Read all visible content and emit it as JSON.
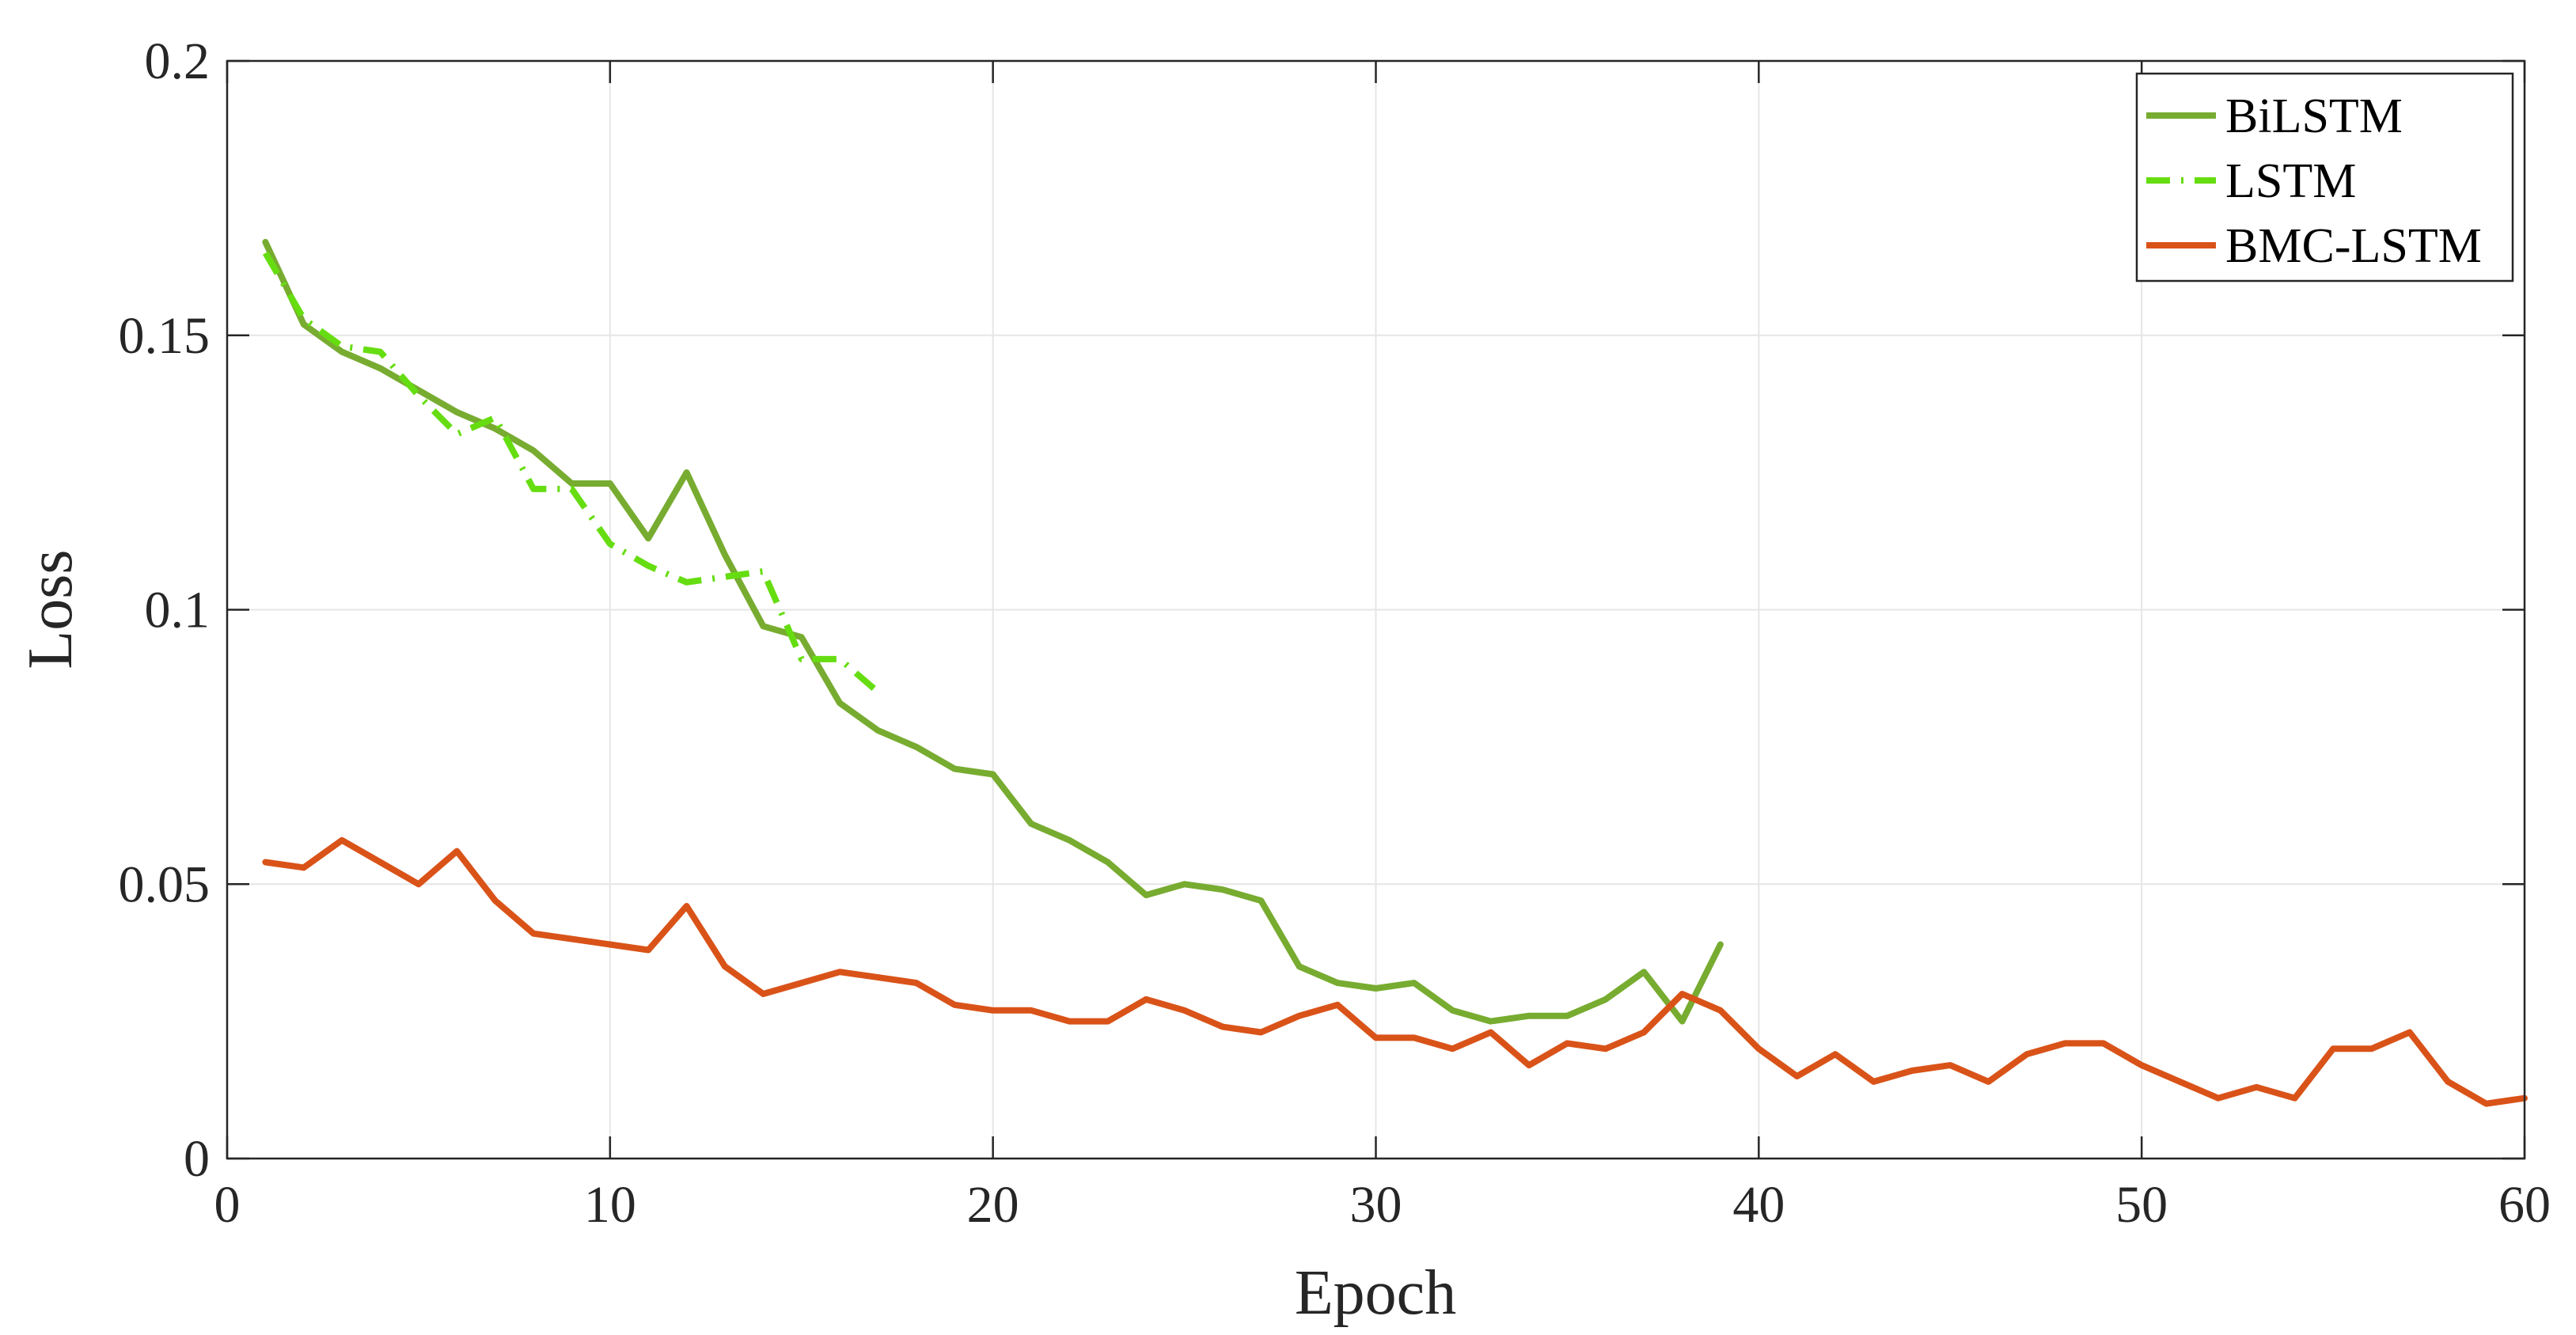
{
  "chart_data": {
    "type": "line",
    "title": "",
    "xlabel": "Epoch",
    "ylabel": "Loss",
    "xlim": [
      0,
      60
    ],
    "ylim": [
      0,
      0.2
    ],
    "xticks": [
      0,
      10,
      20,
      30,
      40,
      50,
      60
    ],
    "xtick_labels": [
      "0",
      "10",
      "20",
      "30",
      "40",
      "50",
      "60"
    ],
    "yticks": [
      0,
      0.05,
      0.1,
      0.15,
      0.2
    ],
    "ytick_labels": [
      "0",
      "0.05",
      "0.1",
      "0.15",
      "0.2"
    ],
    "grid": true,
    "legend_position": "top-right",
    "series": [
      {
        "name": "BiLSTM",
        "color": "#77AC30",
        "style": "solid",
        "x": [
          1,
          2,
          3,
          4,
          5,
          6,
          7,
          8,
          9,
          10,
          11,
          12,
          13,
          14,
          15,
          16,
          17,
          18,
          19,
          20,
          21,
          22,
          23,
          24,
          25,
          26,
          27,
          28,
          29,
          30,
          31,
          32,
          33,
          34,
          35,
          36,
          37,
          38,
          39
        ],
        "values": [
          0.167,
          0.152,
          0.147,
          0.144,
          0.14,
          0.136,
          0.133,
          0.129,
          0.123,
          0.123,
          0.113,
          0.125,
          0.11,
          0.097,
          0.095,
          0.083,
          0.078,
          0.075,
          0.071,
          0.07,
          0.061,
          0.058,
          0.054,
          0.048,
          0.05,
          0.049,
          0.047,
          0.035,
          0.032,
          0.031,
          0.032,
          0.027,
          0.025,
          0.026,
          0.026,
          0.029,
          0.034,
          0.025,
          0.039
        ]
      },
      {
        "name": "LSTM",
        "color": "#66DD11",
        "style": "dashdot",
        "x": [
          1,
          2,
          3,
          4,
          5,
          6,
          7,
          8,
          9,
          10,
          11,
          12,
          13,
          14,
          15,
          16,
          17
        ],
        "values": [
          0.165,
          0.153,
          0.148,
          0.147,
          0.139,
          0.132,
          0.135,
          0.122,
          0.122,
          0.112,
          0.108,
          0.105,
          0.106,
          0.107,
          0.091,
          0.091,
          0.085
        ]
      },
      {
        "name": "BMC-LSTM",
        "color": "#D95319",
        "style": "solid",
        "x": [
          1,
          2,
          3,
          4,
          5,
          6,
          7,
          8,
          9,
          10,
          11,
          12,
          13,
          14,
          15,
          16,
          17,
          18,
          19,
          20,
          21,
          22,
          23,
          24,
          25,
          26,
          27,
          28,
          29,
          30,
          31,
          32,
          33,
          34,
          35,
          36,
          37,
          38,
          39,
          40,
          41,
          42,
          43,
          44,
          45,
          46,
          47,
          48,
          49,
          50,
          51,
          52,
          53,
          54,
          55,
          56,
          57,
          58,
          59,
          60
        ],
        "values": [
          0.054,
          0.053,
          0.058,
          0.054,
          0.05,
          0.056,
          0.047,
          0.041,
          0.04,
          0.039,
          0.038,
          0.046,
          0.035,
          0.03,
          0.032,
          0.034,
          0.033,
          0.032,
          0.028,
          0.027,
          0.027,
          0.025,
          0.025,
          0.029,
          0.027,
          0.024,
          0.023,
          0.026,
          0.028,
          0.022,
          0.022,
          0.02,
          0.023,
          0.017,
          0.021,
          0.02,
          0.023,
          0.03,
          0.027,
          0.02,
          0.015,
          0.019,
          0.014,
          0.016,
          0.017,
          0.014,
          0.019,
          0.021,
          0.021,
          0.017,
          0.014,
          0.011,
          0.013,
          0.011,
          0.02,
          0.02,
          0.023,
          0.014,
          0.01,
          0.011
        ]
      }
    ]
  }
}
